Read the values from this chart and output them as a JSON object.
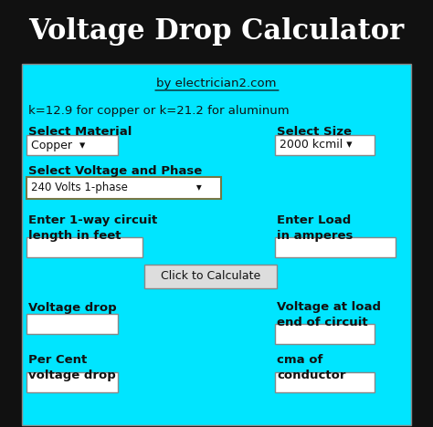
{
  "title": "Voltage Drop Calculator",
  "title_bg": "#111111",
  "title_color": "#ffffff",
  "title_fontsize": 22,
  "body_bg": "#00e5ff",
  "subtitle": "by electrician2.com",
  "formula_text": "k=12.9 for copper or k=21.2 for aluminum",
  "label_material": "Select Material",
  "dropdown_material": "Copper  ▾",
  "label_size": "Select Size",
  "dropdown_size": "2000 kcmil ▾",
  "label_phase": "Select Voltage and Phase",
  "dropdown_phase": "240 Volts 1-phase                    ▾",
  "label_length": "Enter 1-way circuit\nlength in feet",
  "label_load": "Enter Load\nin amperes",
  "button_text": "Click to Calculate",
  "label_vdrop": "Voltage drop",
  "label_vatload": "Voltage at load\nend of circuit",
  "label_pct": "Per Cent\nvoltage drop",
  "label_cma": "cma of\nconductor",
  "input_bg": "#ffffff",
  "dropdown_bg": "#ffffff",
  "button_bg": "#dddddd",
  "text_color": "#111111",
  "border_color": "#888888",
  "underline_color": "#111111"
}
